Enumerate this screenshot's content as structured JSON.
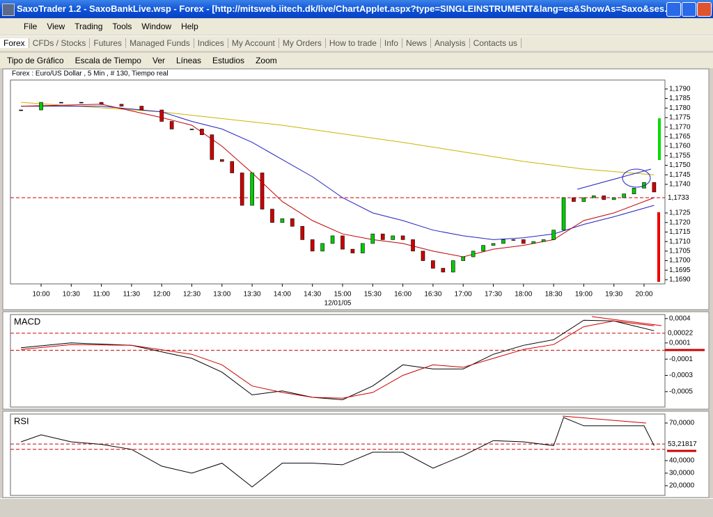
{
  "window": {
    "title": "SaxoTrader 1.2 - SaxoBankLive.wsp - Forex - [http://mitsweb.iitech.dk/live/ChartApplet.aspx?type=SINGLEINSTRUMENT&lang=es&ShowAs=Saxo&ses...",
    "menu": [
      "File",
      "View",
      "Trading",
      "Tools",
      "Window",
      "Help"
    ],
    "tabs": [
      "Forex",
      "CFDs / Stocks",
      "Futures",
      "Managed Funds",
      "Indices",
      "My Account",
      "My Orders",
      "How to trade",
      "Info",
      "News",
      "Analysis",
      "Contacts us"
    ],
    "chart_menu": [
      "Tipo de Gráfico",
      "Escala de Tiempo",
      "Ver",
      "Líneas",
      "Estudios",
      "Zoom"
    ]
  },
  "chart_data": [
    {
      "type": "candlestick",
      "title": "Forex : Euro/US Dollar , 5 Min , # 130, Tiempo real",
      "x_label": "12/01/05",
      "up_color": "#00cc00",
      "down_color": "#cc0000",
      "x": [
        580,
        600,
        620,
        640,
        660,
        680,
        700,
        720,
        730,
        750,
        760,
        770,
        780,
        790,
        800,
        810,
        820,
        830,
        840,
        850,
        860,
        870,
        880,
        890,
        900,
        910,
        920,
        930,
        940,
        950,
        960,
        970,
        980,
        990,
        1000,
        1010,
        1020,
        1030,
        1040,
        1050,
        1060,
        1070,
        1080,
        1090,
        1100,
        1110,
        1120,
        1130,
        1140,
        1150,
        1160,
        1170,
        1180,
        1190,
        1200,
        1210
      ],
      "close": [
        1.1779,
        1.1783,
        1.1783,
        1.1783,
        1.1782,
        1.1781,
        1.1779,
        1.1773,
        1.1769,
        1.1769,
        1.1766,
        1.1753,
        1.1752,
        1.1746,
        1.1729,
        1.1746,
        1.1727,
        1.172,
        1.1722,
        1.1718,
        1.1711,
        1.1705,
        1.1709,
        1.1713,
        1.1706,
        1.1704,
        1.1709,
        1.1714,
        1.1711,
        1.1713,
        1.1711,
        1.1705,
        1.17,
        1.1696,
        1.1694,
        1.17,
        1.1702,
        1.1705,
        1.1708,
        1.1709,
        1.1711,
        1.1711,
        1.1709,
        1.171,
        1.1711,
        1.1716,
        1.1733,
        1.1731,
        1.1733,
        1.1734,
        1.1732,
        1.1733,
        1.1735,
        1.1738,
        1.1741,
        1.1736
      ],
      "series": [
        {
          "color": "#c8b400",
          "x": [
            580,
            720,
            840,
            960,
            1080,
            1140,
            1210
          ],
          "values": [
            1.1783,
            1.1778,
            1.1771,
            1.1762,
            1.1752,
            1.1748,
            1.1745
          ]
        },
        {
          "color": "#2020c0",
          "x": [
            580,
            660,
            720,
            750,
            780,
            810,
            840,
            870,
            900,
            930,
            960,
            990,
            1020,
            1050,
            1080,
            1110,
            1140,
            1170,
            1210
          ],
          "values": [
            1.1781,
            1.1781,
            1.1778,
            1.1773,
            1.1769,
            1.1762,
            1.1753,
            1.1744,
            1.1733,
            1.1725,
            1.1721,
            1.1716,
            1.1713,
            1.1711,
            1.1712,
            1.1714,
            1.1719,
            1.1723,
            1.1729
          ]
        },
        {
          "color": "#c00000",
          "x": [
            580,
            660,
            720,
            750,
            780,
            810,
            840,
            870,
            900,
            930,
            960,
            990,
            1020,
            1050,
            1080,
            1110,
            1140,
            1170,
            1210
          ],
          "values": [
            1.1781,
            1.1782,
            1.1775,
            1.1771,
            1.176,
            1.1746,
            1.1731,
            1.1721,
            1.1714,
            1.1711,
            1.1709,
            1.1705,
            1.1702,
            1.1706,
            1.1708,
            1.1711,
            1.1721,
            1.1725,
            1.1733
          ]
        }
      ],
      "xlim": [
        569.5,
        1220.8
      ],
      "ylim": [
        1.16878,
        1.17947
      ],
      "xticks": [
        {
          "value": 600,
          "label": "10:00"
        },
        {
          "value": 630,
          "label": "10:30"
        },
        {
          "value": 660,
          "label": "11:00"
        },
        {
          "value": 690,
          "label": "11:30"
        },
        {
          "value": 720,
          "label": "12:00"
        },
        {
          "value": 750,
          "label": "12:30"
        },
        {
          "value": 780,
          "label": "13:00"
        },
        {
          "value": 810,
          "label": "13:30"
        },
        {
          "value": 840,
          "label": "14:00"
        },
        {
          "value": 870,
          "label": "14:30"
        },
        {
          "value": 900,
          "label": "15:00"
        },
        {
          "value": 930,
          "label": "15:30"
        },
        {
          "value": 960,
          "label": "16:00"
        },
        {
          "value": 990,
          "label": "16:30"
        },
        {
          "value": 1020,
          "label": "17:00"
        },
        {
          "value": 1050,
          "label": "17:30"
        },
        {
          "value": 1080,
          "label": "18:00"
        },
        {
          "value": 1110,
          "label": "18:30"
        },
        {
          "value": 1140,
          "label": "19:00"
        },
        {
          "value": 1170,
          "label": "19:30"
        },
        {
          "value": 1200,
          "label": "20:00"
        }
      ],
      "yticks": [
        {
          "value": 1.179,
          "label": "1,1790"
        },
        {
          "value": 1.1785,
          "label": "1,1785"
        },
        {
          "value": 1.178,
          "label": "1,1780"
        },
        {
          "value": 1.1775,
          "label": "1,1775"
        },
        {
          "value": 1.177,
          "label": "1,1770"
        },
        {
          "value": 1.1765,
          "label": "1,1765"
        },
        {
          "value": 1.176,
          "label": "1,1760"
        },
        {
          "value": 1.1755,
          "label": "1,1755"
        },
        {
          "value": 1.175,
          "label": "1,1750"
        },
        {
          "value": 1.1745,
          "label": "1,1745"
        },
        {
          "value": 1.174,
          "label": "1,1740"
        },
        {
          "value": 1.1725,
          "label": "1,1725"
        },
        {
          "value": 1.172,
          "label": "1,1720"
        },
        {
          "value": 1.1715,
          "label": "1,1715"
        },
        {
          "value": 1.171,
          "label": "1,1710"
        },
        {
          "value": 1.1705,
          "label": "1,1705"
        },
        {
          "value": 1.17,
          "label": "1,1700"
        },
        {
          "value": 1.1695,
          "label": "1,1695"
        },
        {
          "value": 1.169,
          "label": "1,1690"
        }
      ],
      "ref_color": "#cc0000",
      "ref_lines": [
        {
          "value": 1.1733,
          "label": "1,1733"
        }
      ]
    },
    {
      "type": "line",
      "title": "MACD",
      "series": [
        {
          "color": "#000000",
          "x": [
            580,
            630,
            690,
            750,
            780,
            810,
            840,
            870,
            900,
            930,
            960,
            990,
            1020,
            1050,
            1080,
            1110,
            1140,
            1170,
            1210
          ],
          "values": [
            4e-05,
            0.0001,
            7e-05,
            -9e-05,
            -0.00026,
            -0.00054,
            -0.00049,
            -0.00057,
            -0.0006,
            -0.00043,
            -0.00017,
            -0.00022,
            -0.00022,
            -4e-05,
            7e-05,
            0.00014,
            0.00038,
            0.00037,
            0.00025
          ]
        },
        {
          "color": "#cc0000",
          "x": [
            580,
            630,
            690,
            750,
            780,
            810,
            840,
            870,
            900,
            930,
            960,
            990,
            1020,
            1050,
            1080,
            1110,
            1140,
            1170,
            1210
          ],
          "values": [
            2e-05,
            8e-05,
            7e-05,
            -4e-05,
            -0.00017,
            -0.00043,
            -0.00051,
            -0.00057,
            -0.00058,
            -0.00051,
            -0.0003,
            -0.00017,
            -0.0002,
            -9e-05,
            2e-05,
            8e-05,
            0.0003,
            0.00037,
            0.00031
          ]
        }
      ],
      "xlim": [
        569.5,
        1220.8
      ],
      "ylim": [
        -0.00069,
        0.00045
      ],
      "yticks": [
        {
          "value": 0.0004,
          "label": "0,0004"
        },
        {
          "value": 0.0001,
          "label": "0,0001"
        },
        {
          "value": -0.0001,
          "label": "-0,0001"
        },
        {
          "value": -0.0003,
          "label": "-0,0003"
        },
        {
          "value": -0.0005,
          "label": "-0,0005"
        }
      ],
      "ref_color": "#cc0000",
      "ref_lines": [
        {
          "value": 0.00022,
          "label": "0,00022"
        },
        1e-05
      ]
    },
    {
      "type": "line",
      "title": "RSI",
      "series": [
        {
          "color": "#000000",
          "x": [
            580,
            600,
            630,
            660,
            690,
            720,
            750,
            780,
            810,
            840,
            870,
            900,
            930,
            960,
            990,
            1020,
            1050,
            1080,
            1110,
            1120,
            1140,
            1170,
            1200,
            1210
          ],
          "values": [
            55,
            60.6,
            55,
            53,
            49,
            35.6,
            30,
            38,
            19,
            38,
            38,
            36.7,
            46.7,
            46.7,
            34,
            44,
            56,
            55,
            52,
            74.4,
            67.8,
            67.8,
            67.8,
            52
          ]
        }
      ],
      "xlim": [
        569.5,
        1220.8
      ],
      "ylim": [
        12.2,
        77.2
      ],
      "yticks": [
        {
          "value": 70,
          "label": "70,0000"
        },
        {
          "value": 40,
          "label": "40,0000"
        },
        {
          "value": 30,
          "label": "30,0000"
        },
        {
          "value": 20,
          "label": "20,0000"
        }
      ],
      "ref_color": "#cc0000",
      "ref_lines": [
        {
          "value": 53.21817,
          "label": "53,21817"
        },
        49
      ]
    }
  ]
}
